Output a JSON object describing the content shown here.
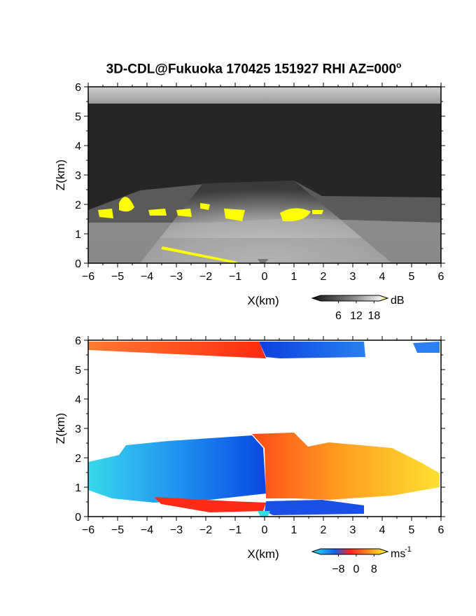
{
  "figure": {
    "title": "3D-CDL@Fukuoka 170425 151927 RHI AZ=000",
    "title_degree": "o"
  },
  "colors": {
    "frame": "#000000",
    "highlight": "#ffff00",
    "background": "#ffffff"
  },
  "chart_data": [
    {
      "type": "heatmap",
      "name": "reflectivity-panel",
      "xlabel": "X(km)",
      "ylabel": "Z(km)",
      "xlim": [
        -6,
        6
      ],
      "ylim": [
        0,
        6
      ],
      "xticks": [
        "-6",
        "-5",
        "-4",
        "-3",
        "-2",
        "-1",
        "0",
        "1",
        "2",
        "3",
        "4",
        "5",
        "6"
      ],
      "yticks": [
        "0",
        "1",
        "2",
        "3",
        "4",
        "5",
        "6"
      ],
      "colormap": "grayscale, yellow above 18 dB",
      "colorbar": {
        "unit": "dB",
        "ticks": [
          6,
          12,
          18
        ],
        "tick_labels": [
          "6",
          "12",
          "18"
        ]
      }
    },
    {
      "type": "heatmap",
      "name": "velocity-panel",
      "xlabel": "X(km)",
      "ylabel": "Z(km)",
      "xlim": [
        -6,
        6
      ],
      "ylim": [
        0,
        6
      ],
      "xticks": [
        "-6",
        "-5",
        "-4",
        "-3",
        "-2",
        "-1",
        "0",
        "1",
        "2",
        "3",
        "4",
        "5",
        "6"
      ],
      "yticks": [
        "0",
        "1",
        "2",
        "3",
        "4",
        "5",
        "6"
      ],
      "colormap": "cyan-blue (negative) to red-orange-yellow (positive)",
      "colorbar": {
        "unit": "ms",
        "unit_exponent": "-1",
        "ticks": [
          -8,
          0,
          8
        ],
        "tick_labels": [
          "−8",
          "0",
          "8"
        ]
      }
    }
  ]
}
